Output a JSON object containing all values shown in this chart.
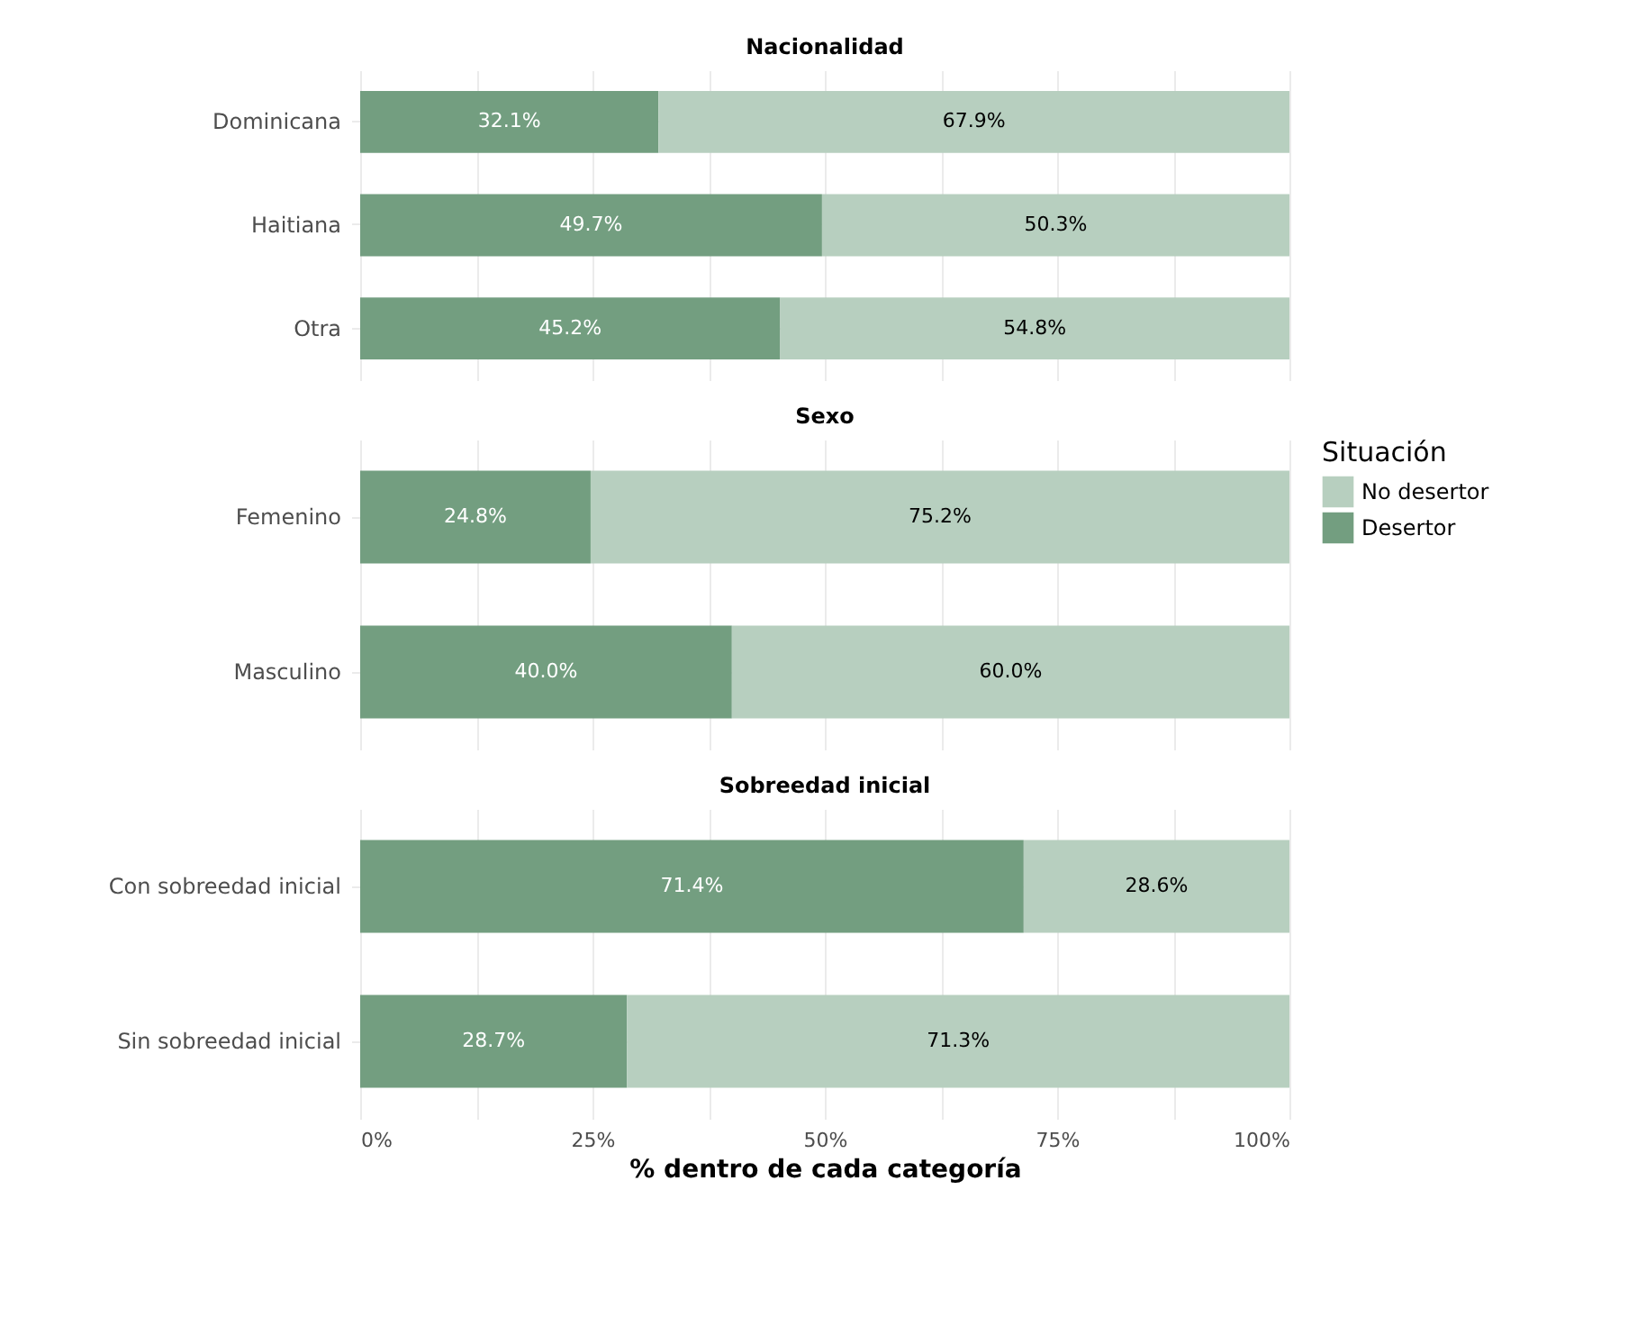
{
  "chart_data": [
    {
      "type": "bar",
      "title": "Nacionalidad",
      "orientation": "horizontal",
      "stacked": true,
      "categories": [
        "Dominicana",
        "Haitiana",
        "Otra"
      ],
      "series": [
        {
          "color": "#739e80",
          "values": [
            32.1,
            49.7,
            45.2
          ],
          "value_labels": [
            "32.1%",
            "49.7%",
            "45.2%"
          ]
        },
        {
          "color": "#b7cfbf",
          "values": [
            67.9,
            50.3,
            54.8
          ],
          "value_labels": [
            "67.9%",
            "50.3%",
            "54.8%"
          ]
        }
      ],
      "xlim": [
        0,
        100
      ],
      "xticks": [
        0,
        12.5,
        25,
        37.5,
        50,
        62.5,
        75,
        87.5,
        100
      ],
      "grid": true,
      "tick_labels": "y"
    },
    {
      "type": "bar",
      "title": "Sexo",
      "orientation": "horizontal",
      "stacked": true,
      "categories": [
        "Femenino",
        "Masculino"
      ],
      "series": [
        {
          "name": "Desertor",
          "color": "#739e80",
          "values": [
            24.8,
            40.0
          ],
          "value_labels": [
            "24.8%",
            "40.0%"
          ]
        },
        {
          "name": "No desertor",
          "color": "#b7cfbf",
          "values": [
            75.2,
            60.0
          ],
          "value_labels": [
            "75.2%",
            "60.0%"
          ]
        }
      ],
      "xlim": [
        0,
        100
      ],
      "xticks": [
        0,
        12.5,
        25,
        37.5,
        50,
        62.5,
        75,
        87.5,
        100
      ],
      "grid": true,
      "legend": "right",
      "legend_title": "Situación",
      "tick_labels": "y"
    },
    {
      "type": "bar",
      "title": "Sobreedad inicial",
      "orientation": "horizontal",
      "stacked": true,
      "categories": [
        "Con sobreedad inicial",
        "Sin sobreedad inicial"
      ],
      "series": [
        {
          "color": "#739e80",
          "values": [
            71.4,
            28.7
          ],
          "value_labels": [
            "71.4%",
            "28.7%"
          ]
        },
        {
          "color": "#b7cfbf",
          "values": [
            28.6,
            71.3
          ],
          "value_labels": [
            "28.6%",
            "71.3%"
          ]
        }
      ],
      "xlim": [
        0,
        100
      ],
      "xticks": [
        {
          "value": 0,
          "label": "0%"
        },
        {
          "value": 12.5,
          "label": null
        },
        {
          "value": 25,
          "label": "25%"
        },
        {
          "value": 37.5,
          "label": null
        },
        {
          "value": 50,
          "label": "50%"
        },
        {
          "value": 62.5,
          "label": null
        },
        {
          "value": 75,
          "label": "75%"
        },
        {
          "value": 87.5,
          "label": null
        },
        {
          "value": 100,
          "label": "100%"
        }
      ],
      "grid": true,
      "xlabel": "% dentro de cada categoría"
    }
  ]
}
